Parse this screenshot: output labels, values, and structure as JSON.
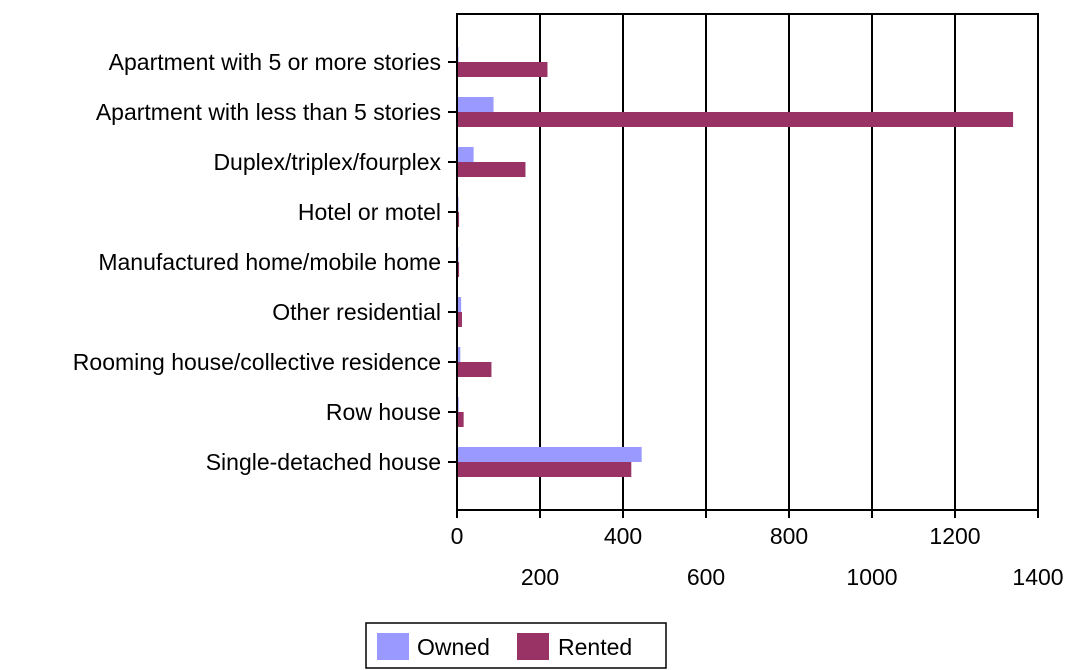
{
  "chart_data": {
    "type": "bar",
    "orientation": "horizontal",
    "categories": [
      "Apartment with 5 or more stories",
      "Apartment with less than 5 stories",
      "Duplex/triplex/fourplex",
      "Hotel or motel",
      "Manufactured home/mobile home",
      "Other residential",
      "Rooming house/collective residence",
      "Row house",
      "Single-detached house"
    ],
    "series": [
      {
        "name": "Owned",
        "color": "#9999ff",
        "values": [
          3,
          88,
          40,
          2,
          2,
          10,
          8,
          4,
          445
        ]
      },
      {
        "name": "Rented",
        "color": "#993366",
        "values": [
          218,
          1340,
          165,
          5,
          5,
          12,
          83,
          16,
          420
        ]
      }
    ],
    "xlim": [
      0,
      1400
    ],
    "xticks": [
      0,
      200,
      400,
      600,
      800,
      1000,
      1200,
      1400
    ],
    "grid": true,
    "legend": "bottom",
    "title": "",
    "xlabel": "",
    "ylabel": ""
  }
}
